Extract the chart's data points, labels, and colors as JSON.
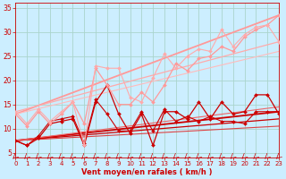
{
  "xlabel": "Vent moyen/en rafales ( km/h )",
  "xlim": [
    0,
    23
  ],
  "ylim": [
    4,
    36
  ],
  "xticks": [
    0,
    1,
    2,
    3,
    4,
    5,
    6,
    7,
    8,
    9,
    10,
    11,
    12,
    13,
    14,
    15,
    16,
    17,
    18,
    19,
    20,
    21,
    22,
    23
  ],
  "yticks": [
    5,
    10,
    15,
    20,
    25,
    30,
    35
  ],
  "bg_color": "#cceeff",
  "grid_color": "#aad4cc",
  "lines": [
    {
      "x": [
        0,
        1,
        2,
        3,
        4,
        5,
        6,
        7,
        8,
        9,
        10,
        11,
        12,
        13,
        14,
        15,
        16,
        17,
        18,
        19,
        20,
        21,
        22,
        23
      ],
      "y": [
        7.5,
        6.5,
        8.0,
        11.0,
        11.5,
        12.0,
        6.5,
        15.5,
        19.0,
        13.0,
        9.0,
        13.0,
        6.5,
        13.5,
        13.5,
        12.0,
        15.5,
        12.0,
        15.5,
        13.0,
        13.5,
        17.0,
        17.0,
        13.0
      ],
      "color": "#cc0000",
      "marker": "D",
      "markersize": 2.0,
      "linewidth": 0.9
    },
    {
      "x": [
        0,
        1,
        2,
        3,
        4,
        5,
        6,
        7,
        8,
        9,
        10,
        11,
        12,
        13,
        14,
        15,
        16,
        17,
        18,
        19,
        20,
        21,
        22,
        23
      ],
      "y": [
        7.5,
        6.5,
        8.5,
        11.5,
        12.0,
        12.5,
        7.0,
        16.0,
        13.0,
        9.5,
        9.5,
        13.5,
        9.5,
        14.0,
        11.5,
        12.5,
        11.5,
        12.5,
        11.5,
        11.5,
        11.0,
        13.5,
        13.5,
        13.5
      ],
      "color": "#cc0000",
      "marker": "D",
      "markersize": 2.0,
      "linewidth": 0.8
    },
    {
      "x": [
        0,
        1,
        2,
        3,
        4,
        5,
        6,
        7,
        8,
        9,
        10,
        11,
        12,
        13,
        14,
        15,
        16,
        17,
        18,
        19,
        20,
        21,
        22,
        23
      ],
      "y": [
        13.0,
        10.5,
        13.5,
        11.0,
        13.0,
        15.5,
        11.0,
        22.5,
        19.0,
        15.0,
        15.0,
        17.5,
        15.5,
        19.0,
        23.5,
        22.0,
        24.5,
        25.0,
        27.0,
        26.0,
        29.0,
        30.5,
        31.5,
        33.5
      ],
      "color": "#ff9999",
      "marker": "D",
      "markersize": 2.0,
      "linewidth": 0.9
    },
    {
      "x": [
        0,
        1,
        2,
        3,
        4,
        5,
        6,
        7,
        8,
        9,
        10,
        11,
        12,
        13,
        14,
        15,
        16,
        17,
        18,
        19,
        20,
        21,
        22,
        23
      ],
      "y": [
        13.5,
        11.0,
        14.0,
        11.5,
        13.5,
        15.5,
        6.5,
        23.0,
        22.5,
        22.5,
        16.5,
        15.5,
        20.5,
        25.5,
        22.5,
        25.0,
        26.5,
        26.0,
        30.5,
        27.0,
        29.5,
        31.0,
        31.5,
        28.0
      ],
      "color": "#ffaaaa",
      "marker": "D",
      "markersize": 2.0,
      "linewidth": 0.8
    },
    {
      "x": [
        0,
        23
      ],
      "y": [
        7.5,
        13.5
      ],
      "color": "#cc0000",
      "marker": null,
      "linewidth": 1.3
    },
    {
      "x": [
        0,
        23
      ],
      "y": [
        7.5,
        12.0
      ],
      "color": "#cc0000",
      "marker": null,
      "linewidth": 0.9
    },
    {
      "x": [
        0,
        23
      ],
      "y": [
        7.5,
        10.5
      ],
      "color": "#dd4444",
      "marker": null,
      "linewidth": 0.8
    },
    {
      "x": [
        0,
        23
      ],
      "y": [
        13.0,
        33.5
      ],
      "color": "#ff9999",
      "marker": null,
      "linewidth": 1.3
    },
    {
      "x": [
        0,
        23
      ],
      "y": [
        13.5,
        28.0
      ],
      "color": "#ffaaaa",
      "marker": null,
      "linewidth": 0.9
    },
    {
      "x": [
        0,
        23
      ],
      "y": [
        13.0,
        26.0
      ],
      "color": "#ffbbbb",
      "marker": null,
      "linewidth": 0.8
    },
    {
      "x": [
        0,
        23
      ],
      "y": [
        7.5,
        14.5
      ],
      "color": "#ee6666",
      "marker": null,
      "linewidth": 0.8
    }
  ],
  "xlabel_color": "#cc0000",
  "tick_color": "#cc0000",
  "xlabel_fontsize": 6.0,
  "tick_fontsize_x": 5.0,
  "tick_fontsize_y": 5.5
}
